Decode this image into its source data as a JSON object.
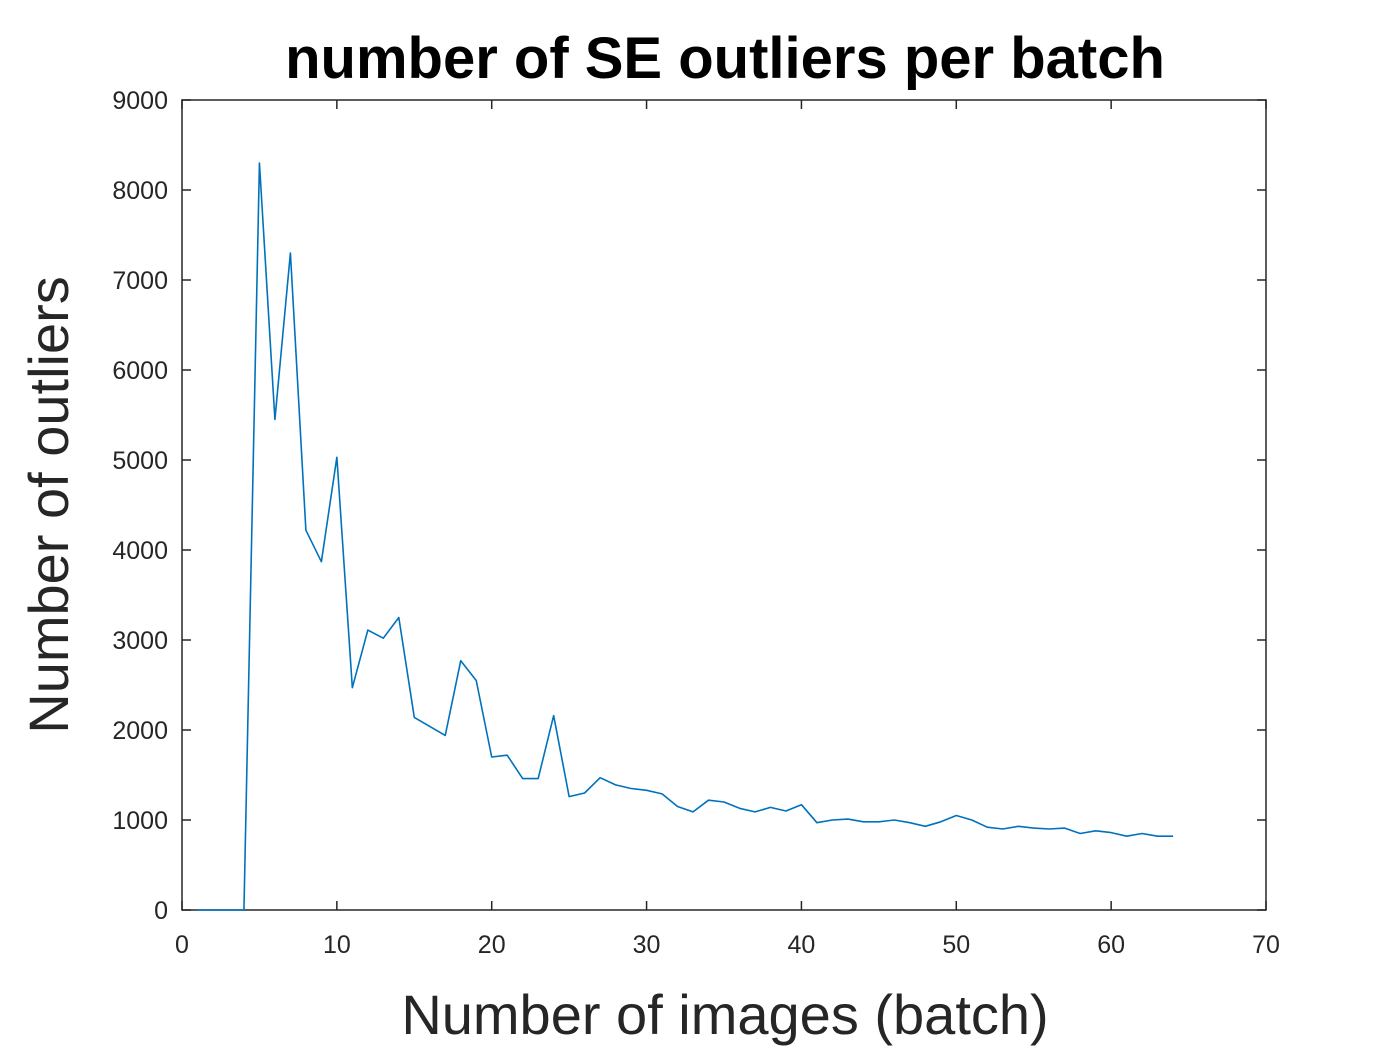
{
  "chart_data": {
    "type": "line",
    "title": "number of SE outliers per batch",
    "xlabel": "Number of images (batch)",
    "ylabel": "Number of outliers",
    "xlim": [
      0,
      70
    ],
    "ylim": [
      0,
      9000
    ],
    "xticks": [
      0,
      10,
      20,
      30,
      40,
      50,
      60,
      70
    ],
    "yticks": [
      0,
      1000,
      2000,
      3000,
      4000,
      5000,
      6000,
      7000,
      8000,
      9000
    ],
    "grid": false,
    "color": "#0072BD",
    "series": [
      {
        "x": [
          1,
          2,
          3,
          4,
          5,
          6,
          7,
          8,
          9,
          10,
          11,
          12,
          13,
          14,
          15,
          16,
          17,
          18,
          19,
          20,
          21,
          22,
          23,
          24,
          25,
          26,
          27,
          28,
          29,
          30,
          31,
          32,
          33,
          34,
          35,
          36,
          37,
          38,
          39,
          40,
          41,
          42,
          43,
          44,
          45,
          46,
          47,
          48,
          49,
          50,
          51,
          52,
          53,
          54,
          55,
          56,
          57,
          58,
          59,
          60,
          61,
          62,
          63,
          64
        ],
        "y": [
          0,
          0,
          0,
          0,
          8300,
          5450,
          7300,
          4220,
          3870,
          5030,
          2470,
          3110,
          3020,
          3250,
          2140,
          2040,
          1940,
          2770,
          2550,
          1700,
          1720,
          1460,
          1460,
          2160,
          1260,
          1300,
          1470,
          1390,
          1350,
          1330,
          1290,
          1150,
          1090,
          1220,
          1200,
          1130,
          1090,
          1140,
          1100,
          1170,
          970,
          1000,
          1010,
          980,
          980,
          1000,
          970,
          930,
          980,
          1050,
          1000,
          920,
          900,
          930,
          910,
          900,
          910,
          850,
          880,
          860,
          820,
          850,
          820,
          820
        ]
      }
    ]
  }
}
